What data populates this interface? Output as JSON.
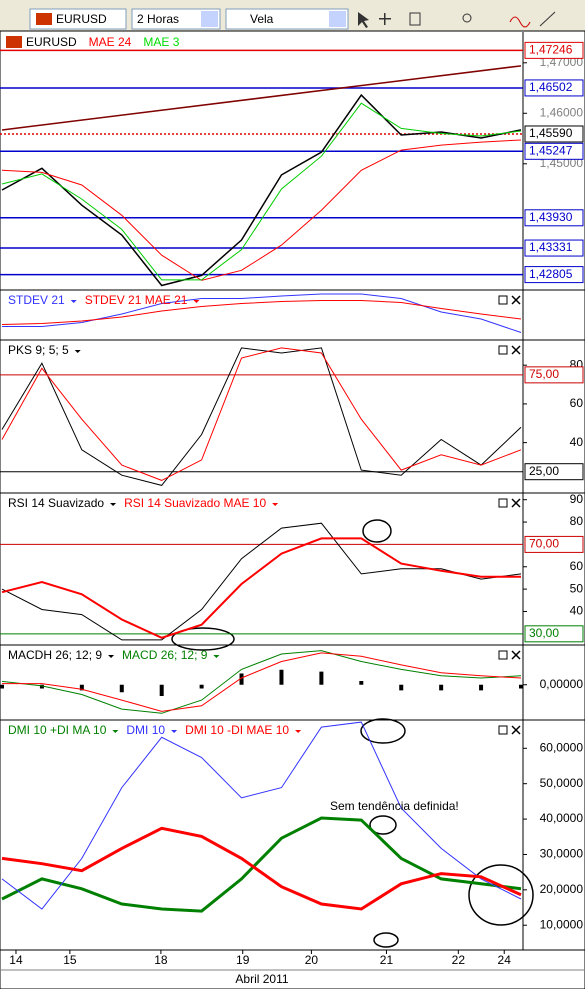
{
  "toolbar": {
    "symbol": "EURUSD",
    "period": "2 Horas",
    "chart_style": "Vela"
  },
  "chart_data": [
    {
      "type": "line",
      "xlim": [
        0,
        13
      ],
      "x": [
        0,
        1,
        2,
        3,
        4,
        5,
        6,
        7,
        8,
        9,
        10,
        11,
        12,
        13
      ],
      "ylim": [
        1.425,
        1.4761
      ],
      "yticks": [
        {
          "value": 1.47,
          "label": "1,47000"
        },
        {
          "value": 1.46,
          "label": "1,46000"
        },
        {
          "value": 1.45,
          "label": "1,45000"
        }
      ],
      "series": [
        {
          "name": "EURUSD",
          "color": "#000000",
          "width": 1.5,
          "values": [
            1.4448,
            1.4491,
            1.4418,
            1.4359,
            1.4259,
            1.4279,
            1.4349,
            1.4478,
            1.4523,
            1.4636,
            1.4557,
            1.4563,
            1.4551,
            1.4567
          ]
        },
        {
          "name": "MAE 24",
          "color": "#ff0000",
          "width": 1,
          "values": [
            1.4487,
            1.4483,
            1.4458,
            1.4398,
            1.4319,
            1.4269,
            1.4289,
            1.4339,
            1.4408,
            1.4487,
            1.4527,
            1.4537,
            1.4543,
            1.4547
          ]
        },
        {
          "name": "MAE 3",
          "color": "#00cc00",
          "width": 1,
          "values": [
            1.446,
            1.448,
            1.443,
            1.437,
            1.427,
            1.427,
            1.433,
            1.445,
            1.4515,
            1.462,
            1.457,
            1.456,
            1.4555,
            1.4565
          ]
        }
      ],
      "levels": [
        {
          "value": 1.47246,
          "label": "1,47246",
          "color": "#e00000"
        },
        {
          "value": 1.46502,
          "label": "1,46502",
          "color": "#0000cc"
        },
        {
          "value": 1.4559,
          "label": "1,45590",
          "color": "#e00000",
          "dash": true
        },
        {
          "value": 1.45247,
          "label": "1,45247",
          "color": "#0000cc"
        },
        {
          "value": 1.4393,
          "label": "1,43930",
          "color": "#0000cc"
        },
        {
          "value": 1.43331,
          "label": "1,43331",
          "color": "#0000cc"
        },
        {
          "value": 1.42805,
          "label": "1,42805",
          "color": "#0000cc"
        }
      ],
      "trendline": {
        "color": "#800000",
        "values": [
          1.4567,
          1.4694
        ]
      }
    },
    {
      "type": "line",
      "xlim": [
        0,
        13
      ],
      "x": [
        0,
        1,
        2,
        3,
        4,
        5,
        6,
        7,
        8,
        9,
        10,
        11,
        12,
        13
      ],
      "ylim": [
        0,
        100
      ],
      "series": [
        {
          "name": "STDEV 21",
          "color": "#3333ff",
          "width": 1,
          "values": [
            27,
            27,
            35,
            52,
            73,
            83,
            83,
            88,
            92,
            92,
            83,
            56,
            42,
            15
          ]
        },
        {
          "name": "STDEV 21 MAE 21",
          "color": "#ff0000",
          "width": 1,
          "values": [
            31,
            33,
            38,
            46,
            58,
            67,
            73,
            77,
            79,
            79,
            75,
            63,
            52,
            42
          ]
        }
      ]
    },
    {
      "type": "line",
      "xlim": [
        0,
        13
      ],
      "x": [
        0,
        1,
        2,
        3,
        4,
        5,
        6,
        7,
        8,
        9,
        10,
        11,
        12,
        13
      ],
      "ylim": [
        14,
        93
      ],
      "yticks": [
        40,
        60,
        80
      ],
      "series": [
        {
          "name": "PKS 9; 5; 5",
          "color": "#000000",
          "width": 1,
          "values": [
            46.8,
            81,
            36.3,
            23.2,
            17.9,
            44.2,
            88.9,
            86.3,
            88.9,
            25.8,
            23.2,
            41.6,
            28.4,
            47.9
          ]
        },
        {
          "color": "#ff0000",
          "width": 1,
          "values": [
            41.6,
            78.4,
            52.1,
            28.4,
            20.5,
            31.1,
            83.7,
            88.9,
            86.3,
            52.1,
            25.8,
            33.7,
            28.4,
            36.3
          ]
        }
      ],
      "levels": [
        {
          "value": 75,
          "label": "75,00",
          "color": "#cc0000"
        },
        {
          "value": 25,
          "label": "25,00",
          "color": "#000000"
        }
      ]
    },
    {
      "type": "line",
      "xlim": [
        0,
        13
      ],
      "x": [
        0,
        1,
        2,
        3,
        4,
        5,
        6,
        7,
        8,
        9,
        10,
        11,
        12,
        13
      ],
      "ylim": [
        25,
        93
      ],
      "yticks": [
        40,
        50,
        60,
        80,
        90
      ],
      "series": [
        {
          "name": "RSI 14 Suavizado",
          "color": "#000000",
          "width": 1,
          "values": [
            50,
            40.9,
            38.6,
            27.3,
            27.3,
            40.9,
            63.6,
            77.3,
            79.5,
            56.8,
            59.1,
            59.1,
            54.5,
            56.8
          ]
        },
        {
          "name": "RSI 14 Suavizado MAE 10",
          "color": "#ff0000",
          "width": 2,
          "values": [
            48.6,
            53.2,
            47.7,
            36.4,
            28.2,
            34.1,
            52.3,
            65.9,
            72.7,
            72.7,
            61.4,
            58.2,
            55.5,
            55.5
          ]
        }
      ],
      "levels": [
        {
          "value": 70,
          "label": "70,00",
          "color": "#cc0000"
        },
        {
          "value": 30,
          "label": "30,00",
          "color": "#008000"
        }
      ]
    },
    {
      "type": "line",
      "xlim": [
        0,
        13
      ],
      "x": [
        0,
        1,
        2,
        3,
        4,
        5,
        6,
        7,
        8,
        9,
        10,
        11,
        12,
        13
      ],
      "ylim": [
        -9.4,
        10.6
      ],
      "yticks": [
        {
          "value": 0,
          "label": "0,00000"
        }
      ],
      "series": [
        {
          "name": "MACDH 26; 12; 9",
          "color": "#000000",
          "style": "bar",
          "values": [
            -1,
            -1,
            -1.5,
            -2,
            -3,
            -1,
            3,
            4,
            3.5,
            1,
            -1.5,
            -1.5,
            -1.5,
            -1
          ]
        },
        {
          "name": "MACD 26; 12; 9",
          "color": "#008000",
          "width": 1,
          "values": [
            0.9,
            -0.3,
            -2.6,
            -6.5,
            -7.6,
            -4.1,
            4.1,
            8.2,
            9.1,
            6.2,
            4.1,
            2.4,
            1.8,
            2.4
          ]
        },
        {
          "color": "#ff0000",
          "width": 1,
          "values": [
            0.3,
            0.3,
            -1.2,
            -4.1,
            -7.1,
            -5.6,
            1.8,
            6.2,
            8.5,
            7.6,
            5.3,
            3.2,
            2.4,
            1.8
          ]
        }
      ]
    },
    {
      "type": "line",
      "xlim": [
        0,
        13
      ],
      "x": [
        0,
        1,
        2,
        3,
        4,
        5,
        6,
        7,
        8,
        9,
        10,
        11,
        12,
        13
      ],
      "ylim": [
        3,
        68
      ],
      "yticks": [
        {
          "value": 10,
          "label": "10,0000"
        },
        {
          "value": 20,
          "label": "20,0000"
        },
        {
          "value": 30,
          "label": "30,0000"
        },
        {
          "value": 40,
          "label": "40,0000"
        },
        {
          "value": 50,
          "label": "50,0000"
        },
        {
          "value": 60,
          "label": "60,0000"
        }
      ],
      "series": [
        {
          "name": "DMI 10 +DI MA 10",
          "color": "#008000",
          "width": 3,
          "values": [
            17.4,
            23.1,
            20.3,
            16,
            14.6,
            14,
            23.1,
            34.6,
            40.3,
            39.7,
            28.9,
            23.1,
            21.7,
            20.3
          ]
        },
        {
          "name": "DMI 10",
          "color": "#3333ff",
          "width": 1,
          "values": [
            23.1,
            14.6,
            28.9,
            48.9,
            63.1,
            57.4,
            46,
            48.9,
            66,
            67.4,
            43.1,
            31.7,
            23.1,
            17.4
          ]
        },
        {
          "name": "DMI 10 -DI MAE 10",
          "color": "#ff0000",
          "width": 3,
          "values": [
            28.9,
            27.4,
            25.4,
            31.7,
            37.4,
            35.1,
            28.9,
            20.9,
            16,
            14.6,
            21.7,
            24.6,
            23.7,
            18.6
          ]
        }
      ],
      "annotation": "Sem tendência definida!",
      "xticks": [
        {
          "value": 0.35,
          "label": "14"
        },
        {
          "value": 1.7,
          "label": "15"
        },
        {
          "value": 3.98,
          "label": "18"
        },
        {
          "value": 6.03,
          "label": "19"
        },
        {
          "value": 7.75,
          "label": "20"
        },
        {
          "value": 9.63,
          "label": "21"
        },
        {
          "value": 11.43,
          "label": "22"
        },
        {
          "value": 12.58,
          "label": "24"
        }
      ],
      "xlabel": "Abril 2011"
    }
  ]
}
